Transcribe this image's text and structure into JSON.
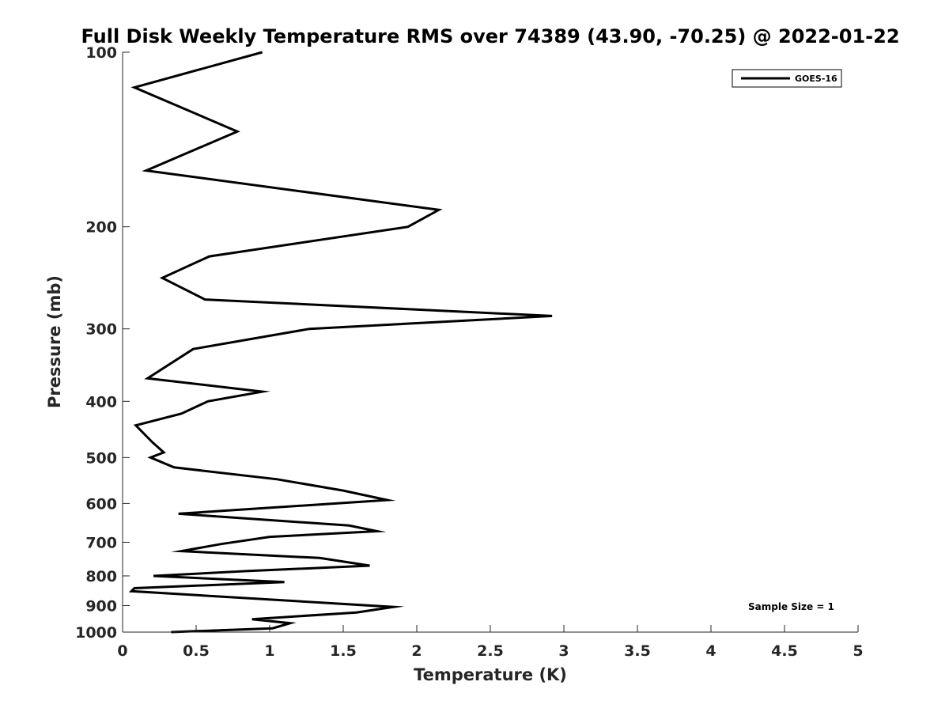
{
  "chart_data": {
    "type": "line",
    "title": "Full Disk Weekly Temperature RMS over 74389 (43.90, -70.25) @ 2022-01-22",
    "xlabel": "Temperature (K)",
    "ylabel": "Pressure (mb)",
    "xlim": [
      0,
      5
    ],
    "ylim": [
      100,
      1000
    ],
    "y_scale": "log",
    "y_reversed": true,
    "x_ticks": [
      0,
      0.5,
      1,
      1.5,
      2,
      2.5,
      3,
      3.5,
      4,
      4.5,
      5
    ],
    "x_tick_labels": [
      "0",
      "0.5",
      "1",
      "1.5",
      "2",
      "2.5",
      "3",
      "3.5",
      "4",
      "4.5",
      "5"
    ],
    "y_ticks": [
      100,
      200,
      300,
      400,
      500,
      600,
      700,
      800,
      900,
      1000
    ],
    "y_tick_labels": [
      "100",
      "200",
      "300",
      "400",
      "500",
      "600",
      "700",
      "800",
      "900",
      "1000"
    ],
    "grid": false,
    "legend_position": "top-right",
    "annotation": "Sample Size = 1",
    "series": [
      {
        "name": "GOES-16",
        "color": "#000000",
        "temperature": [
          0.95,
          0.08,
          0.78,
          0.16,
          2.15,
          1.94,
          0.59,
          0.27,
          0.56,
          2.92,
          1.27,
          0.48,
          0.17,
          0.95,
          0.58,
          0.4,
          0.09,
          0.2,
          0.28,
          0.19,
          0.35,
          1.05,
          1.5,
          1.8,
          0.38,
          1.54,
          1.73,
          1.0,
          0.67,
          0.4,
          1.34,
          1.68,
          0.84,
          0.21,
          1.1,
          0.08,
          0.06,
          1.84,
          1.59,
          0.88,
          1.14,
          1.02,
          0.33
        ],
        "pressure": [
          100,
          115,
          137,
          160,
          187,
          200,
          225,
          245,
          267,
          285,
          300,
          325,
          365,
          385,
          400,
          420,
          440,
          470,
          490,
          500,
          520,
          545,
          570,
          592,
          625,
          655,
          670,
          685,
          705,
          725,
          745,
          768,
          785,
          800,
          820,
          840,
          850,
          905,
          925,
          950,
          965,
          985,
          1000
        ]
      }
    ]
  }
}
